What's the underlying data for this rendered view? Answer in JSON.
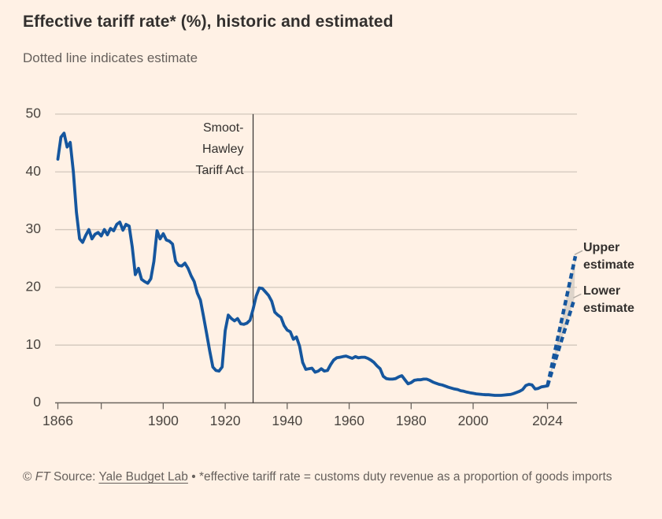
{
  "header": {
    "title": "Effective tariff rate* (%), historic and estimated",
    "subtitle": "Dotted line indicates estimate"
  },
  "footer": {
    "copyright_prefix": "© ",
    "ft_mark": "FT",
    "source_prefix": " Source: ",
    "source_link": "Yale Budget Lab",
    "note": " • *effective tariff rate = customs duty revenue as a proportion of goods imports"
  },
  "chart": {
    "colors": {
      "background": "#FFF1E5",
      "line_blue": "#15569E",
      "gridline": "#D2C7BC",
      "axis": "#6B655F",
      "tick_label": "#4A4540",
      "dark_text": "#33302E",
      "wedge_fill": "#CFC7BF",
      "leader_tick": "#B3ACA4",
      "rule_line": "#33302E"
    },
    "y_axis": {
      "tick_labels": [
        "0",
        "10",
        "20",
        "30",
        "40",
        "50"
      ],
      "tick_values": [
        0,
        10,
        20,
        30,
        40,
        50
      ]
    },
    "x_axis": {
      "ticks": [
        {
          "year": 1866,
          "label": "1866"
        },
        {
          "year": 1880,
          "label": ""
        },
        {
          "year": 1900,
          "label": "1900"
        },
        {
          "year": 1920,
          "label": "1920"
        },
        {
          "year": 1940,
          "label": "1940"
        },
        {
          "year": 1960,
          "label": "1960"
        },
        {
          "year": 1980,
          "label": "1980"
        },
        {
          "year": 2000,
          "label": "2000"
        },
        {
          "year": 2024,
          "label": "2024"
        }
      ]
    },
    "event_rule": {
      "year": 1929,
      "label_lines": [
        "Smoot-",
        "Hawley",
        "Tariff Act"
      ]
    },
    "annotations": {
      "upper": {
        "lines": [
          "Upper",
          "estimate"
        ]
      },
      "lower": {
        "lines": [
          "Lower",
          "estimate"
        ]
      }
    }
  },
  "chart_data": {
    "type": "line",
    "title": "Effective tariff rate* (%), historic and estimated",
    "subtitle": "Dotted line indicates estimate",
    "xlabel": "",
    "ylabel": "Effective tariff rate (%)",
    "ylim": [
      0,
      50
    ],
    "xlim": [
      1866,
      2033
    ],
    "grid": "horizontal",
    "series": [
      {
        "name": "historic",
        "style": "solid",
        "start_year": 1866,
        "step_years": 1,
        "values": [
          42.2,
          46.0,
          46.7,
          44.3,
          45.1,
          40.0,
          33.0,
          28.4,
          27.8,
          29.0,
          30.0,
          28.4,
          29.2,
          29.5,
          28.9,
          30.0,
          29.1,
          30.2,
          29.8,
          30.9,
          31.3,
          29.9,
          30.9,
          30.6,
          27.0,
          22.2,
          23.3,
          21.4,
          21.0,
          20.7,
          21.5,
          24.5,
          29.8,
          28.4,
          29.3,
          28.2,
          28.0,
          27.5,
          24.5,
          23.8,
          23.7,
          24.2,
          23.3,
          22.0,
          21.0,
          19.0,
          17.8,
          15.0,
          12.0,
          9.0,
          6.2,
          5.6,
          5.5,
          6.2,
          12.5,
          15.2,
          14.6,
          14.2,
          14.6,
          13.7,
          13.6,
          13.8,
          14.3,
          16.2,
          18.5,
          19.9,
          19.8,
          19.2,
          18.6,
          17.6,
          15.7,
          15.2,
          14.8,
          13.4,
          12.6,
          12.3,
          11.0,
          11.4,
          9.8,
          7.0,
          5.8,
          5.9,
          6.0,
          5.3,
          5.5,
          5.9,
          5.5,
          5.6,
          6.6,
          7.4,
          7.8,
          7.9,
          8.0,
          8.1,
          7.9,
          7.7,
          8.0,
          7.8,
          7.9,
          7.9,
          7.7,
          7.4,
          7.0,
          6.4,
          5.9,
          4.6,
          4.2,
          4.1,
          4.1,
          4.2,
          4.5,
          4.7,
          4.0,
          3.3,
          3.5,
          3.9,
          4.0,
          4.0,
          4.1,
          4.1,
          3.9,
          3.6,
          3.4,
          3.2,
          3.1,
          2.9,
          2.7,
          2.55,
          2.4,
          2.3,
          2.1,
          2.0,
          1.85,
          1.75,
          1.65,
          1.55,
          1.5,
          1.45,
          1.4,
          1.4,
          1.35,
          1.3,
          1.3,
          1.3,
          1.35,
          1.4,
          1.45,
          1.6,
          1.8,
          2.0,
          2.3,
          3.0,
          3.2,
          3.1,
          2.4,
          2.5,
          2.75,
          2.85,
          2.95
        ]
      },
      {
        "name": "upper estimate",
        "style": "dotted",
        "points": [
          [
            2024,
            2.95
          ],
          [
            2033.0,
            25.4
          ]
        ]
      },
      {
        "name": "lower estimate",
        "style": "dotted",
        "points": [
          [
            2024,
            2.95
          ],
          [
            2032.6,
            17.9
          ]
        ]
      }
    ],
    "event_line": {
      "x": 1929,
      "label": "Smoot-Hawley Tariff Act"
    },
    "annotations": [
      "Upper estimate",
      "Lower estimate"
    ]
  }
}
